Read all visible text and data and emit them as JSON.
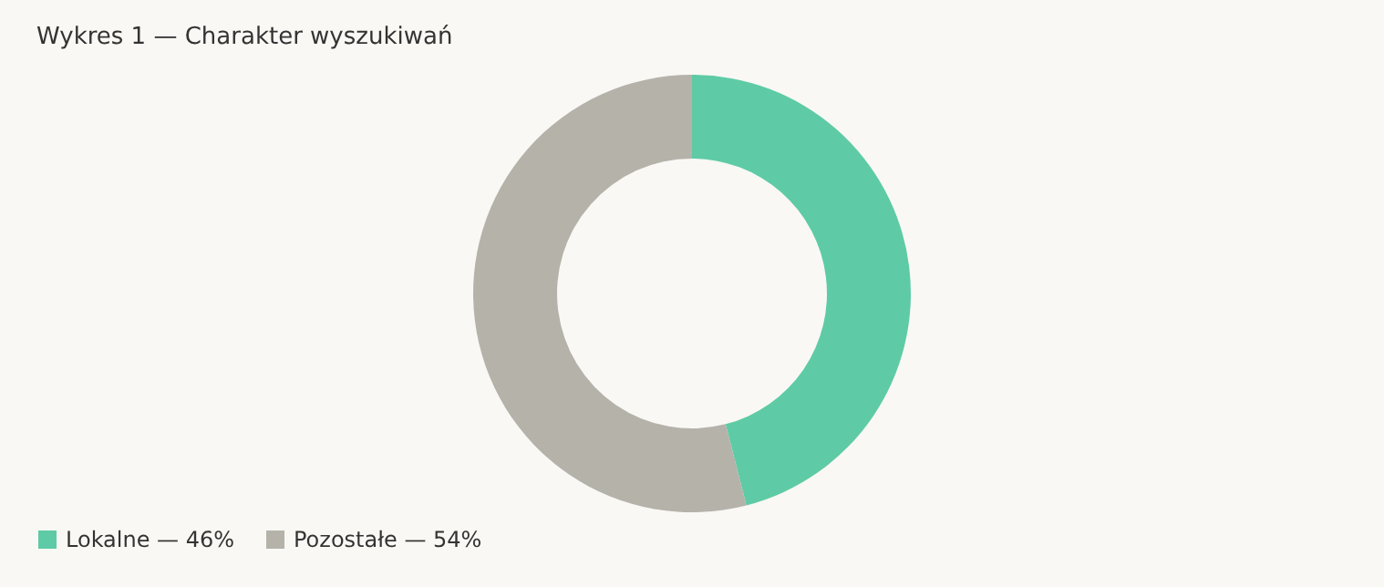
{
  "chart_data": {
    "type": "donut",
    "title": "Wykres 1 — Charakter wyszukiwań",
    "categories": [
      "Lokalne — 46%",
      "Pozostałe — 54%"
    ],
    "values": [
      46,
      54
    ],
    "colors": [
      "#5ecba6",
      "#b5b2aa"
    ],
    "legend": "bottom left"
  }
}
